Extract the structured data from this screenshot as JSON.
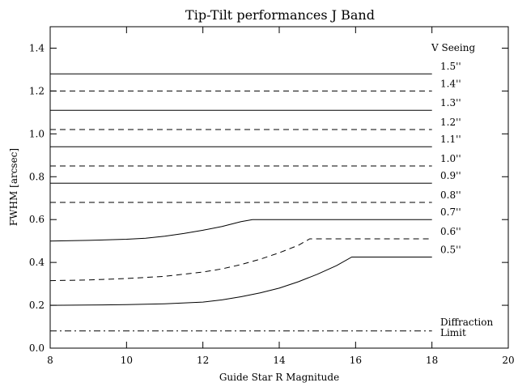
{
  "chart_data": {
    "type": "line",
    "title": "Tip-Tilt performances J Band",
    "xlabel": "Guide Star R Magnitude",
    "ylabel": "FWHM [arcsec]",
    "xlim": [
      8,
      20
    ],
    "ylim": [
      0,
      1.5
    ],
    "xticks": [
      8,
      10,
      12,
      14,
      16,
      18,
      20
    ],
    "yticks": [
      0.0,
      0.2,
      0.4,
      0.6,
      0.8,
      1.0,
      1.2,
      1.4
    ],
    "xtick_labels": [
      "8",
      "10",
      "12",
      "14",
      "16",
      "18",
      "20"
    ],
    "ytick_labels": [
      "0.0",
      "0.2",
      "0.4",
      "0.6",
      "0.8",
      "1.0",
      "1.2",
      "1.4"
    ],
    "legend_title": "V Seeing",
    "grid": false,
    "series": [
      {
        "name": "1.5''",
        "style": "solid",
        "x": [
          8,
          18
        ],
        "y": [
          1.28,
          1.28
        ]
      },
      {
        "name": "1.4''",
        "style": "dashed",
        "x": [
          8,
          18
        ],
        "y": [
          1.2,
          1.2
        ]
      },
      {
        "name": "1.3''",
        "style": "solid",
        "x": [
          8,
          18
        ],
        "y": [
          1.11,
          1.11
        ]
      },
      {
        "name": "1.2''",
        "style": "dashed",
        "x": [
          8,
          18
        ],
        "y": [
          1.02,
          1.02
        ]
      },
      {
        "name": "1.1''",
        "style": "solid",
        "x": [
          8,
          18
        ],
        "y": [
          0.94,
          0.94
        ]
      },
      {
        "name": "1.0''",
        "style": "dashed",
        "x": [
          8,
          18
        ],
        "y": [
          0.85,
          0.85
        ]
      },
      {
        "name": "0.9''",
        "style": "solid",
        "x": [
          8,
          18
        ],
        "y": [
          0.77,
          0.77
        ]
      },
      {
        "name": "0.8''",
        "style": "dashed",
        "x": [
          8,
          18
        ],
        "y": [
          0.68,
          0.68
        ]
      },
      {
        "name": "0.7''",
        "style": "solid",
        "x": [
          8,
          9,
          10,
          10.5,
          11,
          11.5,
          12,
          12.5,
          13,
          13.3,
          14,
          16,
          18
        ],
        "y": [
          0.5,
          0.503,
          0.508,
          0.513,
          0.522,
          0.535,
          0.55,
          0.568,
          0.59,
          0.6,
          0.6,
          0.6,
          0.6
        ]
      },
      {
        "name": "0.6''",
        "style": "dashed",
        "x": [
          8,
          9,
          10,
          11,
          12,
          12.5,
          13,
          13.5,
          14,
          14.5,
          14.8,
          16,
          18
        ],
        "y": [
          0.315,
          0.318,
          0.325,
          0.335,
          0.355,
          0.37,
          0.39,
          0.415,
          0.445,
          0.48,
          0.51,
          0.51,
          0.51
        ]
      },
      {
        "name": "0.5''",
        "style": "solid",
        "x": [
          8,
          9,
          10,
          11,
          12,
          12.5,
          13,
          13.5,
          14,
          14.5,
          15,
          15.5,
          15.9,
          17,
          18
        ],
        "y": [
          0.2,
          0.201,
          0.203,
          0.207,
          0.215,
          0.225,
          0.24,
          0.258,
          0.28,
          0.31,
          0.345,
          0.385,
          0.425,
          0.425,
          0.425
        ]
      },
      {
        "name": "Diffraction Limit",
        "label_lines": [
          "Diffraction",
          "Limit"
        ],
        "style": "dashdot",
        "x": [
          8,
          18
        ],
        "y": [
          0.08,
          0.08
        ]
      }
    ]
  }
}
